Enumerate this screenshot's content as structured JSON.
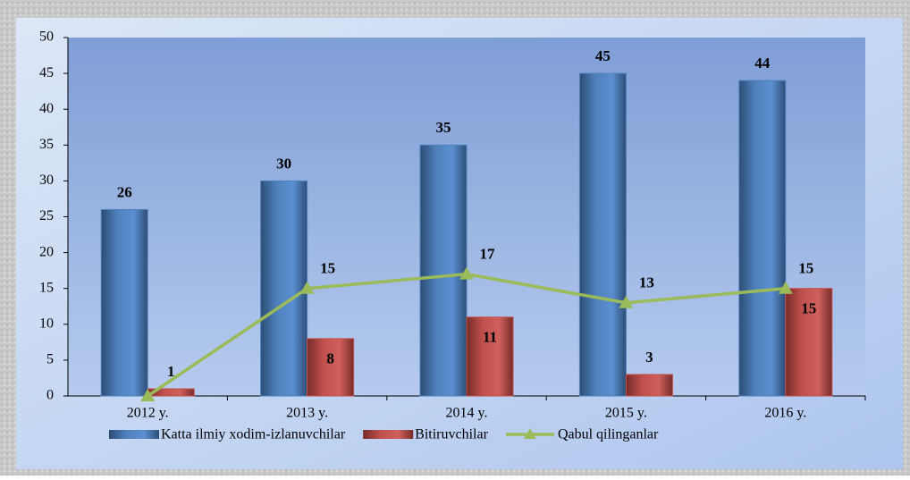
{
  "chart_data": {
    "type": "bar_line",
    "categories": [
      "2012 y.",
      "2013 y.",
      "2014 y.",
      "2015 y.",
      "2016 y."
    ],
    "series": [
      {
        "name": "Katta ilmiy xodim-izlanuvchilar",
        "type": "bar",
        "color": "#4f81bd",
        "values": [
          26,
          30,
          35,
          45,
          44
        ]
      },
      {
        "name": "Bitiruvchilar",
        "type": "bar",
        "color": "#c0504d",
        "values": [
          1,
          8,
          11,
          3,
          15
        ]
      },
      {
        "name": "Qabul qilinganlar",
        "type": "line",
        "color": "#9bbb59",
        "values": [
          0,
          15,
          17,
          13,
          15
        ],
        "value_labels": [
          null,
          "15",
          "17",
          "13",
          "15"
        ]
      }
    ],
    "ylim": [
      0,
      50
    ],
    "yticks": [
      0,
      5,
      10,
      15,
      20,
      25,
      30,
      35,
      40,
      45,
      50
    ],
    "legend": "bottom"
  }
}
